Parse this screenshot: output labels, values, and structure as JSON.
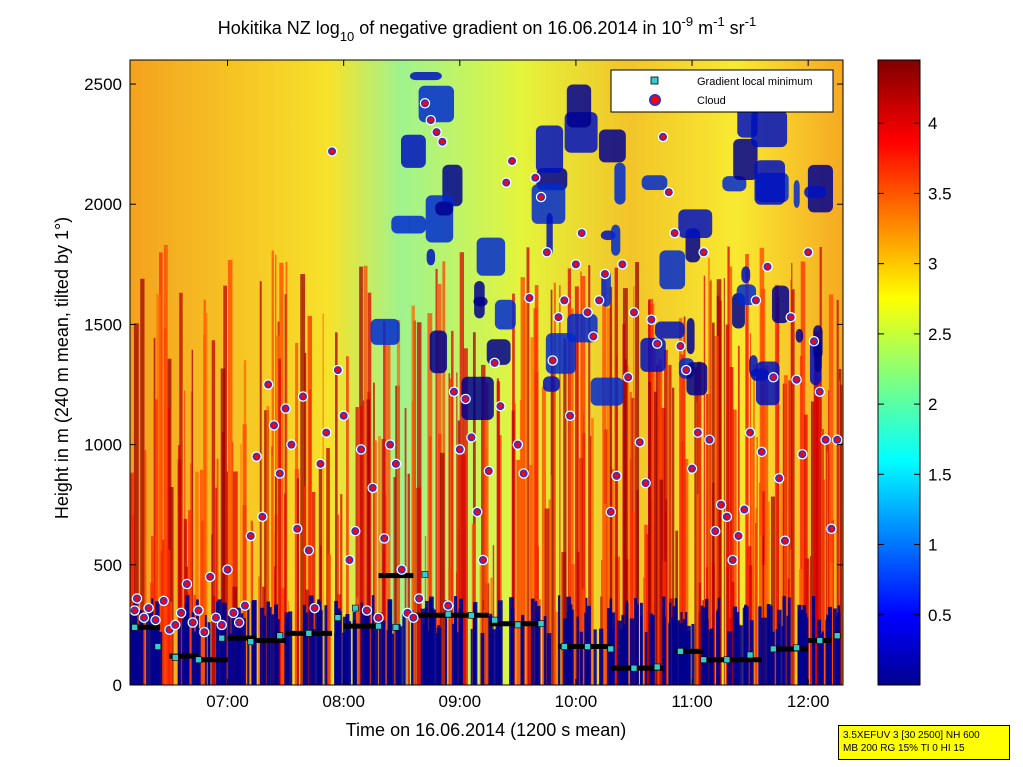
{
  "chart_data": {
    "type": "heatmap",
    "title_parts": {
      "prefix": "Hokitika NZ log",
      "sub": "10",
      "mid": " of negative gradient on 16.06.2014 in 10",
      "sup1": "-9",
      "mid2": " m",
      "sup2": "-1",
      "suffix": " sr",
      "sup3": "-1"
    },
    "xlabel": "Time on 16.06.2014 (1200 s mean)",
    "ylabel": "Height in m (240 m mean, tilted by 1°)",
    "x_ticks": [
      "07:00",
      "08:00",
      "09:00",
      "10:00",
      "11:00",
      "12:00"
    ],
    "x_tick_hours": [
      7,
      8,
      9,
      10,
      11,
      12
    ],
    "x_range_hours": [
      6.16,
      12.3
    ],
    "y_ticks": [
      "0",
      "500",
      "1000",
      "1500",
      "2000",
      "2500"
    ],
    "y_tick_values": [
      0,
      500,
      1000,
      1500,
      2000,
      2500
    ],
    "ylim": [
      0,
      2600
    ],
    "colorbar": {
      "ticks": [
        "0.5",
        "1",
        "1.5",
        "2",
        "2.5",
        "3",
        "3.5",
        "4"
      ],
      "tick_values": [
        0.5,
        1,
        1.5,
        2,
        2.5,
        3,
        3.5,
        4
      ],
      "range": [
        0,
        4.45
      ],
      "colormap": "jet"
    },
    "legend": {
      "placement": "top-right",
      "entries": [
        {
          "label": "Gradient local minimum",
          "marker": "square",
          "color": "#33cccc"
        },
        {
          "label": "Cloud",
          "marker": "circle",
          "color": "#ff0000"
        }
      ]
    },
    "gradient_local_minimum": {
      "x": [
        6.2,
        6.4,
        6.55,
        6.75,
        6.95,
        7.2,
        7.45,
        7.7,
        7.95,
        8.1,
        8.3,
        8.45,
        8.7,
        8.9,
        9.1,
        9.3,
        9.5,
        9.7,
        9.9,
        10.1,
        10.3,
        10.5,
        10.7,
        10.9,
        11.1,
        11.3,
        11.5,
        11.7,
        11.9,
        12.1,
        12.25
      ],
      "y": [
        240,
        160,
        115,
        105,
        195,
        180,
        205,
        215,
        280,
        320,
        245,
        240,
        460,
        295,
        290,
        270,
        250,
        255,
        160,
        160,
        150,
        70,
        75,
        140,
        105,
        105,
        125,
        150,
        155,
        185,
        205
      ]
    },
    "cloud": {
      "x": [
        6.2,
        6.22,
        6.28,
        6.32,
        6.38,
        6.45,
        6.5,
        6.55,
        6.6,
        6.65,
        6.7,
        6.75,
        6.8,
        6.85,
        6.9,
        6.95,
        7.0,
        7.05,
        7.1,
        7.15,
        7.2,
        7.25,
        7.3,
        7.35,
        7.4,
        7.45,
        7.5,
        7.55,
        7.6,
        7.65,
        7.7,
        7.75,
        7.8,
        7.85,
        7.9,
        7.95,
        8.0,
        8.05,
        8.1,
        8.15,
        8.2,
        8.25,
        8.3,
        8.35,
        8.4,
        8.45,
        8.5,
        8.55,
        8.6,
        8.65,
        8.7,
        8.75,
        8.8,
        8.85,
        8.9,
        8.95,
        9.0,
        9.05,
        9.1,
        9.15,
        9.2,
        9.25,
        9.3,
        9.35,
        9.4,
        9.45,
        9.5,
        9.55,
        9.6,
        9.65,
        9.7,
        9.75,
        9.8,
        9.85,
        9.9,
        9.95,
        10.0,
        10.05,
        10.1,
        10.15,
        10.2,
        10.25,
        10.3,
        10.35,
        10.4,
        10.45,
        10.5,
        10.55,
        10.6,
        10.65,
        10.7,
        10.75,
        10.8,
        10.85,
        10.9,
        10.95,
        11.0,
        11.05,
        11.1,
        11.15,
        11.2,
        11.25,
        11.3,
        11.35,
        11.4,
        11.45,
        11.5,
        11.55,
        11.6,
        11.65,
        11.7,
        11.75,
        11.8,
        11.85,
        11.9,
        11.95,
        12.0,
        12.05,
        12.1,
        12.15,
        12.2,
        12.25
      ],
      "y": [
        310,
        360,
        280,
        320,
        270,
        350,
        230,
        250,
        300,
        420,
        260,
        310,
        220,
        450,
        280,
        250,
        480,
        300,
        260,
        330,
        620,
        950,
        700,
        1250,
        1080,
        880,
        1150,
        1000,
        650,
        1200,
        560,
        320,
        920,
        1050,
        2220,
        1310,
        1120,
        520,
        640,
        980,
        310,
        820,
        280,
        610,
        1000,
        920,
        480,
        300,
        280,
        360,
        2420,
        2350,
        2300,
        2260,
        330,
        1220,
        980,
        1190,
        1030,
        720,
        520,
        890,
        1340,
        1160,
        2090,
        2180,
        1000,
        880,
        1610,
        2110,
        2030,
        1800,
        1350,
        1530,
        1600,
        1120,
        1750,
        1880,
        1550,
        1450,
        1600,
        1710,
        720,
        870,
        1750,
        1280,
        1550,
        1010,
        840,
        1520,
        1420,
        2280,
        2050,
        1880,
        1410,
        1310,
        900,
        1050,
        1800,
        1020,
        640,
        750,
        700,
        520,
        620,
        730,
        1050,
        1600,
        970,
        1740,
        1280,
        860,
        600,
        1530,
        1270,
        960,
        1800,
        1430,
        1220,
        1020,
        650,
        1020
      ]
    },
    "min_line_segments": [
      {
        "x0": 6.2,
        "x1": 6.42,
        "y": 240
      },
      {
        "x0": 6.5,
        "x1": 6.75,
        "y": 120
      },
      {
        "x0": 6.75,
        "x1": 7.0,
        "y": 105
      },
      {
        "x0": 7.0,
        "x1": 7.25,
        "y": 195
      },
      {
        "x0": 7.25,
        "x1": 7.5,
        "y": 185
      },
      {
        "x0": 7.5,
        "x1": 7.9,
        "y": 215
      },
      {
        "x0": 8.0,
        "x1": 8.3,
        "y": 245
      },
      {
        "x0": 8.3,
        "x1": 8.6,
        "y": 455
      },
      {
        "x0": 8.6,
        "x1": 9.25,
        "y": 290
      },
      {
        "x0": 9.25,
        "x1": 9.7,
        "y": 255
      },
      {
        "x0": 9.85,
        "x1": 10.3,
        "y": 160
      },
      {
        "x0": 10.3,
        "x1": 10.75,
        "y": 70
      },
      {
        "x0": 10.85,
        "x1": 11.1,
        "y": 140
      },
      {
        "x0": 11.1,
        "x1": 11.6,
        "y": 105
      },
      {
        "x0": 11.7,
        "x1": 12.0,
        "y": 150
      },
      {
        "x0": 12.0,
        "x1": 12.2,
        "y": 185
      }
    ]
  },
  "info_box": {
    "line1": "3.5XEFUV 3 [30 2500] NH 600",
    "line2": "MB 200 RG 15% TI 0 HI 15"
  }
}
